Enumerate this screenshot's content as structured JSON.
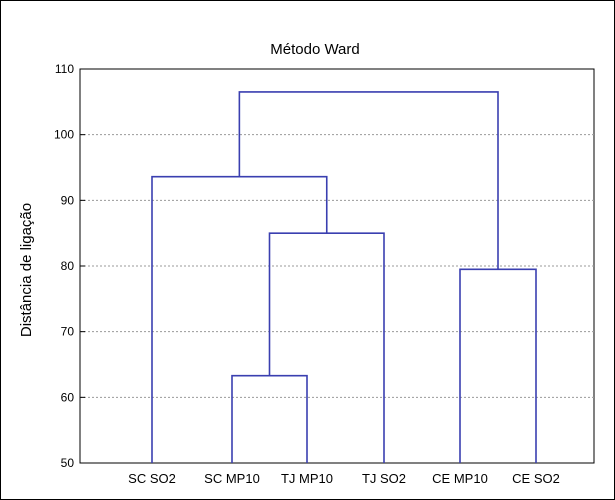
{
  "chart_data": {
    "type": "dendrogram",
    "title": "Método Ward",
    "xlabel": "",
    "ylabel": "Distância de ligação",
    "ylim": [
      50,
      110
    ],
    "yticks": [
      50,
      60,
      70,
      80,
      90,
      100,
      110
    ],
    "grid": true,
    "leaves": [
      "SC SO2",
      "SC MP10",
      "TJ MP10",
      "TJ SO2",
      "CE MP10",
      "CE SO2"
    ],
    "merges": [
      {
        "left": "SC MP10",
        "right": "TJ MP10",
        "height": 63.3
      },
      {
        "left": "SC MP10 + TJ MP10",
        "right": "TJ SO2",
        "height": 85.0
      },
      {
        "left": "SC SO2",
        "right": "SC MP10 + TJ MP10 + TJ SO2",
        "height": 93.6
      },
      {
        "left": "CE MP10",
        "right": "CE SO2",
        "height": 79.5
      },
      {
        "left": "SC SO2 + SC MP10 + TJ MP10 + TJ SO2",
        "right": "CE MP10 + CE SO2",
        "height": 106.5
      }
    ],
    "colors": {
      "line": "#3a3fb0",
      "grid": "#9a9a9a",
      "text": "#000000"
    }
  }
}
